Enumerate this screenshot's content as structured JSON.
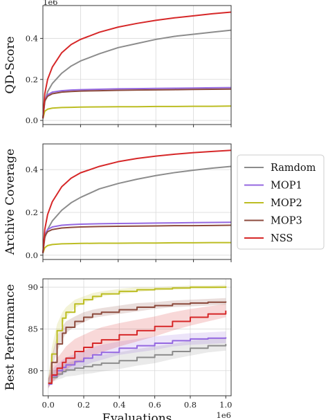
{
  "colors": {
    "Ramdom": "#8c8c8c",
    "MOP1": "#9467e0",
    "MOP2": "#bcbd22",
    "MOP3": "#8c4a3c",
    "NSS": "#d62728",
    "grid": "#d9d9d9",
    "axis": "#333333"
  },
  "legend": {
    "placement": "right",
    "entries": [
      "Ramdom",
      "MOP1",
      "MOP2",
      "MOP3",
      "NSS"
    ]
  },
  "chart_data": [
    {
      "type": "line",
      "ylabel": "QD-Score",
      "y_multiplier": "1e6",
      "xlim": [
        0,
        1000000
      ],
      "ylim": [
        -0.02,
        0.56
      ],
      "yticks": [
        0.0,
        0.2,
        0.4
      ],
      "ytick_labels": [
        "0.0",
        "0.2",
        "0.4"
      ],
      "xticks": [
        0,
        200000,
        400000,
        600000,
        800000,
        1000000
      ],
      "grid": true,
      "x": [
        0,
        10000,
        25000,
        50000,
        100000,
        150000,
        200000,
        300000,
        400000,
        500000,
        600000,
        700000,
        800000,
        900000,
        1000000
      ],
      "series": [
        {
          "name": "Ramdom",
          "values": [
            0.01,
            0.09,
            0.14,
            0.18,
            0.23,
            0.265,
            0.29,
            0.325,
            0.355,
            0.375,
            0.395,
            0.41,
            0.42,
            0.43,
            0.44
          ]
        },
        {
          "name": "MOP1",
          "values": [
            0.01,
            0.1,
            0.125,
            0.138,
            0.145,
            0.148,
            0.15,
            0.152,
            0.154,
            0.155,
            0.156,
            0.157,
            0.158,
            0.159,
            0.16
          ]
        },
        {
          "name": "MOP2",
          "values": [
            0.01,
            0.045,
            0.055,
            0.06,
            0.063,
            0.064,
            0.065,
            0.066,
            0.067,
            0.067,
            0.068,
            0.068,
            0.069,
            0.069,
            0.07
          ]
        },
        {
          "name": "MOP3",
          "values": [
            0.01,
            0.095,
            0.118,
            0.13,
            0.138,
            0.141,
            0.143,
            0.145,
            0.147,
            0.148,
            0.149,
            0.15,
            0.151,
            0.152,
            0.153
          ]
        },
        {
          "name": "NSS",
          "values": [
            0.01,
            0.13,
            0.2,
            0.26,
            0.33,
            0.37,
            0.395,
            0.43,
            0.455,
            0.473,
            0.488,
            0.5,
            0.51,
            0.52,
            0.528
          ]
        }
      ]
    },
    {
      "type": "line",
      "ylabel": "Archive Coverage",
      "xlim": [
        0,
        1000000
      ],
      "ylim": [
        -0.02,
        0.52
      ],
      "yticks": [
        0.0,
        0.2,
        0.4
      ],
      "ytick_labels": [
        "0.0",
        "0.2",
        "0.4"
      ],
      "xticks": [
        0,
        200000,
        400000,
        600000,
        800000,
        1000000
      ],
      "grid": true,
      "x": [
        0,
        10000,
        25000,
        50000,
        100000,
        150000,
        200000,
        300000,
        400000,
        500000,
        600000,
        700000,
        800000,
        900000,
        1000000
      ],
      "series": [
        {
          "name": "Ramdom",
          "values": [
            0.01,
            0.08,
            0.12,
            0.16,
            0.21,
            0.245,
            0.27,
            0.31,
            0.335,
            0.355,
            0.372,
            0.386,
            0.397,
            0.407,
            0.415
          ]
        },
        {
          "name": "MOP1",
          "values": [
            0.01,
            0.095,
            0.12,
            0.132,
            0.14,
            0.143,
            0.145,
            0.147,
            0.148,
            0.149,
            0.15,
            0.151,
            0.152,
            0.153,
            0.154
          ]
        },
        {
          "name": "MOP2",
          "values": [
            0.01,
            0.035,
            0.045,
            0.05,
            0.053,
            0.054,
            0.055,
            0.056,
            0.056,
            0.057,
            0.057,
            0.058,
            0.058,
            0.059,
            0.059
          ]
        },
        {
          "name": "MOP3",
          "values": [
            0.01,
            0.088,
            0.11,
            0.12,
            0.127,
            0.13,
            0.132,
            0.134,
            0.135,
            0.136,
            0.137,
            0.138,
            0.138,
            0.139,
            0.14
          ]
        },
        {
          "name": "NSS",
          "values": [
            0.01,
            0.12,
            0.19,
            0.25,
            0.32,
            0.36,
            0.385,
            0.415,
            0.437,
            0.452,
            0.463,
            0.472,
            0.479,
            0.485,
            0.49
          ]
        }
      ]
    },
    {
      "type": "line",
      "ylabel": "Best Performance",
      "xlabel": "Evaluations",
      "x_multiplier": "1e6",
      "xlim": [
        -0.03,
        1.03
      ],
      "ylim": [
        77.0,
        91.0
      ],
      "yticks": [
        80,
        85,
        90
      ],
      "ytick_labels": [
        "80",
        "85",
        "90"
      ],
      "xticks": [
        0.0,
        0.2,
        0.4,
        0.6,
        0.8,
        1.0
      ],
      "xtick_labels": [
        "0.0",
        "0.2",
        "0.4",
        "0.6",
        "0.8",
        "1.0"
      ],
      "grid": true,
      "x": [
        0,
        0.02,
        0.05,
        0.08,
        0.1,
        0.15,
        0.2,
        0.25,
        0.3,
        0.4,
        0.5,
        0.6,
        0.7,
        0.8,
        0.9,
        1.0
      ],
      "series": [
        {
          "name": "Ramdom",
          "values": [
            78.5,
            79.2,
            79.6,
            79.9,
            80.1,
            80.3,
            80.5,
            80.7,
            80.9,
            81.2,
            81.6,
            81.9,
            82.3,
            82.7,
            83.0,
            83.2
          ],
          "band": [
            0.6,
            0.6,
            0.7,
            0.8,
            0.8,
            0.9,
            0.9,
            1.0,
            1.0,
            1.0,
            1.0,
            1.0,
            0.9,
            0.9,
            0.8,
            0.8
          ]
        },
        {
          "name": "MOP1",
          "values": [
            78.4,
            79.4,
            80.0,
            80.4,
            80.7,
            81.1,
            81.5,
            81.9,
            82.2,
            82.7,
            83.0,
            83.3,
            83.6,
            83.8,
            83.9,
            84.0
          ],
          "band": [
            0.6,
            0.7,
            0.8,
            0.9,
            0.9,
            0.9,
            0.9,
            0.9,
            0.9,
            0.8,
            0.8,
            0.8,
            0.7,
            0.7,
            0.7,
            0.7
          ]
        },
        {
          "name": "MOP2",
          "values": [
            78.5,
            82.0,
            84.8,
            86.3,
            87.0,
            88.0,
            88.5,
            88.9,
            89.2,
            89.5,
            89.7,
            89.8,
            89.9,
            90.0,
            90.0,
            90.1
          ],
          "band": [
            0.5,
            0.8,
            0.8,
            0.7,
            0.6,
            0.5,
            0.4,
            0.4,
            0.3,
            0.3,
            0.3,
            0.2,
            0.2,
            0.2,
            0.2,
            0.2
          ]
        },
        {
          "name": "MOP3",
          "values": [
            78.5,
            81.0,
            83.2,
            84.5,
            85.2,
            85.9,
            86.4,
            86.8,
            87.0,
            87.3,
            87.6,
            87.8,
            88.0,
            88.1,
            88.2,
            88.3
          ],
          "band": [
            0.5,
            0.8,
            0.9,
            0.8,
            0.7,
            0.6,
            0.6,
            0.5,
            0.5,
            0.5,
            0.5,
            0.4,
            0.4,
            0.4,
            0.4,
            0.4
          ]
        },
        {
          "name": "NSS",
          "values": [
            78.5,
            79.5,
            80.3,
            81.0,
            81.5,
            82.3,
            82.8,
            83.3,
            83.7,
            84.3,
            84.8,
            85.3,
            85.9,
            86.4,
            86.8,
            87.2
          ],
          "band": [
            0.6,
            0.9,
            1.2,
            1.3,
            1.4,
            1.5,
            1.5,
            1.5,
            1.5,
            1.4,
            1.3,
            1.2,
            1.1,
            1.0,
            0.9,
            0.8
          ]
        }
      ]
    }
  ]
}
